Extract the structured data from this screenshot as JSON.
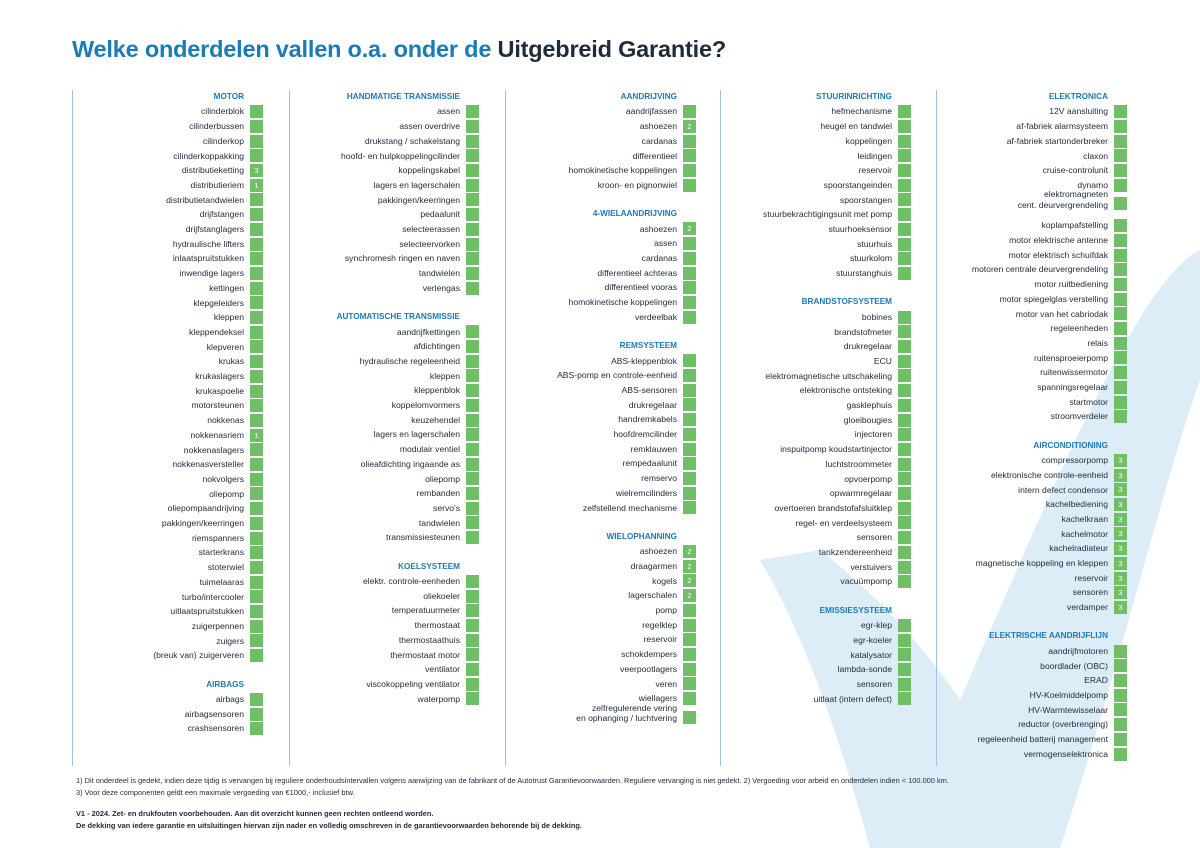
{
  "header": {
    "title_lead": "Welke onderdelen vallen o.a. onder de",
    "title_emphasis": "Uitgebreid Garantie?"
  },
  "columns": [
    {
      "sections": [
        {
          "title": "MOTOR",
          "items": [
            {
              "label": "cilinderblok"
            },
            {
              "label": "cilinderbussen"
            },
            {
              "label": "cilinderkop"
            },
            {
              "label": "cilinderkoppakking"
            },
            {
              "label": "distributieketting",
              "note": 3
            },
            {
              "label": "distributieriem",
              "note": 1
            },
            {
              "label": "distributietandwielen"
            },
            {
              "label": "drijfstangen"
            },
            {
              "label": "drijfstanglagers"
            },
            {
              "label": "hydraulische lifters"
            },
            {
              "label": "inlaatspruitstukken"
            },
            {
              "label": "inwendige lagers"
            },
            {
              "label": "kettingen"
            },
            {
              "label": "klepgeleiders"
            },
            {
              "label": "kleppen"
            },
            {
              "label": "kleppendeksel"
            },
            {
              "label": "klepveren"
            },
            {
              "label": "krukas"
            },
            {
              "label": "krukaslagers"
            },
            {
              "label": "krukaspoelie"
            },
            {
              "label": "motorsteunen"
            },
            {
              "label": "nokkenas"
            },
            {
              "label": "nokkenasriem",
              "note": 1
            },
            {
              "label": "nokkenaslagers"
            },
            {
              "label": "nokkenasversteller"
            },
            {
              "label": "nokvolgers"
            },
            {
              "label": "oliepomp"
            },
            {
              "label": "oliepompaandrijving"
            },
            {
              "label": "pakkingen/keerringen"
            },
            {
              "label": "riemspanners"
            },
            {
              "label": "starterkrans"
            },
            {
              "label": "stoterwiel"
            },
            {
              "label": "tuimelaaras"
            },
            {
              "label": "turbo/intercooler"
            },
            {
              "label": "uitlaatspruitstukken"
            },
            {
              "label": "zuigerpennen"
            },
            {
              "label": "zuigers"
            },
            {
              "label": "(breuk van) zuigerveren"
            }
          ]
        },
        {
          "title": "AIRBAGS",
          "items": [
            {
              "label": "airbags"
            },
            {
              "label": "airbagsensoren"
            },
            {
              "label": "crashsensoren"
            }
          ]
        }
      ]
    },
    {
      "sections": [
        {
          "title": "HANDMATIGE TRANSMISSIE",
          "items": [
            {
              "label": "assen"
            },
            {
              "label": "assen overdrive"
            },
            {
              "label": "drukstang / schakelstang"
            },
            {
              "label": "hoofd- en hulpkoppelingcilinder"
            },
            {
              "label": "koppelingskabel"
            },
            {
              "label": "lagers en lagerschalen"
            },
            {
              "label": "pakkingen/keerringen"
            },
            {
              "label": "pedaalunit"
            },
            {
              "label": "selecteerassen"
            },
            {
              "label": "selecteervorken"
            },
            {
              "label": "synchromesh ringen en naven"
            },
            {
              "label": "tandwielen"
            },
            {
              "label": "verlengas"
            }
          ]
        },
        {
          "title": "AUTOMATISCHE TRANSMISSIE",
          "items": [
            {
              "label": "aandrijfkettingen"
            },
            {
              "label": "afdichtingen"
            },
            {
              "label": "hydraulische regeleenheid"
            },
            {
              "label": "kleppen"
            },
            {
              "label": "kleppenblok"
            },
            {
              "label": "koppelomvormers"
            },
            {
              "label": "keuzehendel"
            },
            {
              "label": "lagers en lagerschalen"
            },
            {
              "label": "modulair ventiel"
            },
            {
              "label": "olieafdichting ingaande as"
            },
            {
              "label": "oliepomp"
            },
            {
              "label": "rembanden"
            },
            {
              "label": "servo's"
            },
            {
              "label": "tandwielen"
            },
            {
              "label": "transmissiesteunen"
            }
          ]
        },
        {
          "title": "KOELSYSTEEM",
          "items": [
            {
              "label": "elektr. controle-eenheden"
            },
            {
              "label": "oliekoeler"
            },
            {
              "label": "temperatuurmeter"
            },
            {
              "label": "thermostaat"
            },
            {
              "label": "thermostaathuis"
            },
            {
              "label": "thermostaat motor"
            },
            {
              "label": "ventilator"
            },
            {
              "label": "viscokoppeling ventilator"
            },
            {
              "label": "waterpomp"
            }
          ]
        }
      ]
    },
    {
      "sections": [
        {
          "title": "AANDRIJVING",
          "items": [
            {
              "label": "aandrijfassen"
            },
            {
              "label": "ashoezen",
              "note": 2
            },
            {
              "label": "cardanas"
            },
            {
              "label": "differentieel"
            },
            {
              "label": "homokinetische koppelingen"
            },
            {
              "label": "kroon- en pignonwiel"
            }
          ]
        },
        {
          "title": "4-WIELAANDRIJVING",
          "items": [
            {
              "label": "ashoezen",
              "note": 2
            },
            {
              "label": "assen"
            },
            {
              "label": "cardanas"
            },
            {
              "label": "differentieel achteras"
            },
            {
              "label": "differentieel vooras"
            },
            {
              "label": "homokinetische koppelingen"
            },
            {
              "label": "verdeelbak"
            }
          ]
        },
        {
          "title": "REMSYSTEEM",
          "items": [
            {
              "label": "ABS-kleppenblok"
            },
            {
              "label": "ABS-pomp en controle-eenheid"
            },
            {
              "label": "ABS-sensoren"
            },
            {
              "label": "drukregelaar"
            },
            {
              "label": "handremkabels"
            },
            {
              "label": "hoofdremcilinder"
            },
            {
              "label": "remklauwen"
            },
            {
              "label": "rempedaalunit"
            },
            {
              "label": "remservo"
            },
            {
              "label": "wielremcilinders"
            },
            {
              "label": "zelfstellend mechanisme"
            }
          ]
        },
        {
          "title": "WIELOPHANNING",
          "items": [
            {
              "label": "ashoezen",
              "note": 2
            },
            {
              "label": "draagarmen",
              "note": 2
            },
            {
              "label": "kogels",
              "note": 2
            },
            {
              "label": "lagerschalen",
              "note": 2
            },
            {
              "label": "pomp"
            },
            {
              "label": "regelklep"
            },
            {
              "label": "reservoir"
            },
            {
              "label": "schokdempers"
            },
            {
              "label": "veerpootlagers"
            },
            {
              "label": "veren"
            },
            {
              "label": "wiellagers"
            },
            {
              "label": "zelfregulerende vering\nen ophanging / luchtvering"
            }
          ]
        }
      ]
    },
    {
      "sections": [
        {
          "title": "STUURINRICHTING",
          "items": [
            {
              "label": "hefmechanisme"
            },
            {
              "label": "heugel en tandwiel"
            },
            {
              "label": "koppelingen"
            },
            {
              "label": "leidingen"
            },
            {
              "label": "reservoir"
            },
            {
              "label": "spoorstangeinden"
            },
            {
              "label": "spoorstangen"
            },
            {
              "label": "stuurbekrachtigingsunit met pomp"
            },
            {
              "label": "stuurhoeksensor"
            },
            {
              "label": "stuurhuis"
            },
            {
              "label": "stuurkolom"
            },
            {
              "label": "stuurstanghuis"
            }
          ]
        },
        {
          "title": "BRANDSTOFSYSTEEM",
          "items": [
            {
              "label": "bobines"
            },
            {
              "label": "brandstofmeter"
            },
            {
              "label": "drukregelaar"
            },
            {
              "label": "ECU"
            },
            {
              "label": "elektromagnetische uitschakeling"
            },
            {
              "label": "elektronische ontsteking"
            },
            {
              "label": "gasklephuis"
            },
            {
              "label": "gloeibougies"
            },
            {
              "label": "injectoren"
            },
            {
              "label": "inspuitpomp koudstartinjector"
            },
            {
              "label": "luchtstroommeter"
            },
            {
              "label": "opvoerpomp"
            },
            {
              "label": "opwarmregelaar"
            },
            {
              "label": "overtoeren brandstofafsluitklep"
            },
            {
              "label": "regel- en verdeelsysteem"
            },
            {
              "label": "sensoren"
            },
            {
              "label": "tankzendereenheid"
            },
            {
              "label": "verstuivers"
            },
            {
              "label": "vacuümpomp"
            }
          ]
        },
        {
          "title": "EMISSIESYSTEEM",
          "items": [
            {
              "label": "egr-klep"
            },
            {
              "label": "egr-koeler"
            },
            {
              "label": "katalysator"
            },
            {
              "label": "lambda-sonde"
            },
            {
              "label": "sensoren"
            },
            {
              "label": "uitlaat (intern defect)"
            }
          ]
        }
      ]
    },
    {
      "sections": [
        {
          "title": "ELEKTRONICA",
          "items": [
            {
              "label": "12V aansluiting"
            },
            {
              "label": "af-fabriek alarmsysteem"
            },
            {
              "label": "af-fabriek startonderbreker"
            },
            {
              "label": "claxon"
            },
            {
              "label": "cruise-controlunit"
            },
            {
              "label": "dynamo"
            },
            {
              "label": "elektromagneten\ncent. deurvergrendeling"
            },
            {
              "label": "koplampafstelling"
            },
            {
              "label": "motor elektrische antenne"
            },
            {
              "label": "motor elektrisch schuifdak"
            },
            {
              "label": "motoren centrale deurvergrendeling"
            },
            {
              "label": "motor ruitbediening"
            },
            {
              "label": "motor spiegelglas verstelling"
            },
            {
              "label": "motor van het cabriodak"
            },
            {
              "label": "regeleenheden"
            },
            {
              "label": "relais"
            },
            {
              "label": "ruitensproeierpomp"
            },
            {
              "label": "ruitenwissermotor"
            },
            {
              "label": "spanningsregelaar"
            },
            {
              "label": "startmotor"
            },
            {
              "label": "stroomverdeler"
            }
          ]
        },
        {
          "title": "AIRCONDITIONING",
          "items": [
            {
              "label": "compressorpomp",
              "note": 3
            },
            {
              "label": "elektronische controle-eenheid",
              "note": 3
            },
            {
              "label": "intern defect condensor",
              "note": 3
            },
            {
              "label": "kachelbediening",
              "note": 3
            },
            {
              "label": "kachelkraan",
              "note": 3
            },
            {
              "label": "kachelmotor",
              "note": 3
            },
            {
              "label": "kachelradiateur",
              "note": 3
            },
            {
              "label": "magnetische koppeling en kleppen",
              "note": 3
            },
            {
              "label": "reservoir",
              "note": 3
            },
            {
              "label": "sensoren",
              "note": 3
            },
            {
              "label": "verdamper",
              "note": 3
            }
          ]
        },
        {
          "title": "ELEKTRISCHE AANDRIJFLIJN",
          "items": [
            {
              "label": "aandrijfmotoren"
            },
            {
              "label": "boordlader (OBC)"
            },
            {
              "label": "ERAD"
            },
            {
              "label": "HV-Koelmiddelpomp"
            },
            {
              "label": "HV-Warmtewisselaar"
            },
            {
              "label": "reductor (overbrenging)"
            },
            {
              "label": "regeleenheid batterij management"
            },
            {
              "label": "vermogenselektronica"
            }
          ]
        }
      ]
    }
  ],
  "footer": {
    "notes": [
      "1) Dit onderdeel is gedekt, indien deze tijdig is vervangen bij reguliere onderhoudsintervallen volgens aanwijzing van de fabrikant of de Autotrust Garantievoorwaarden. Reguliere vervanging is niet gedekt. 2) Vergoeding voor arbeid en onderdelen indien < 100.000 km.",
      "3) Voor deze componenten geldt een maximale vergoeding van €1000,- inclusief btw."
    ],
    "disclaimer": [
      "V1 - 2024. Zet- en drukfouten voorbehouden. Aan dit overzicht kunnen geen rechten ontleend worden.",
      "De dekking van iedere garantie en uitsluitingen hiervan zijn nader en volledig omschreven in de garantievoorwaarden behorende bij de dekking."
    ]
  }
}
